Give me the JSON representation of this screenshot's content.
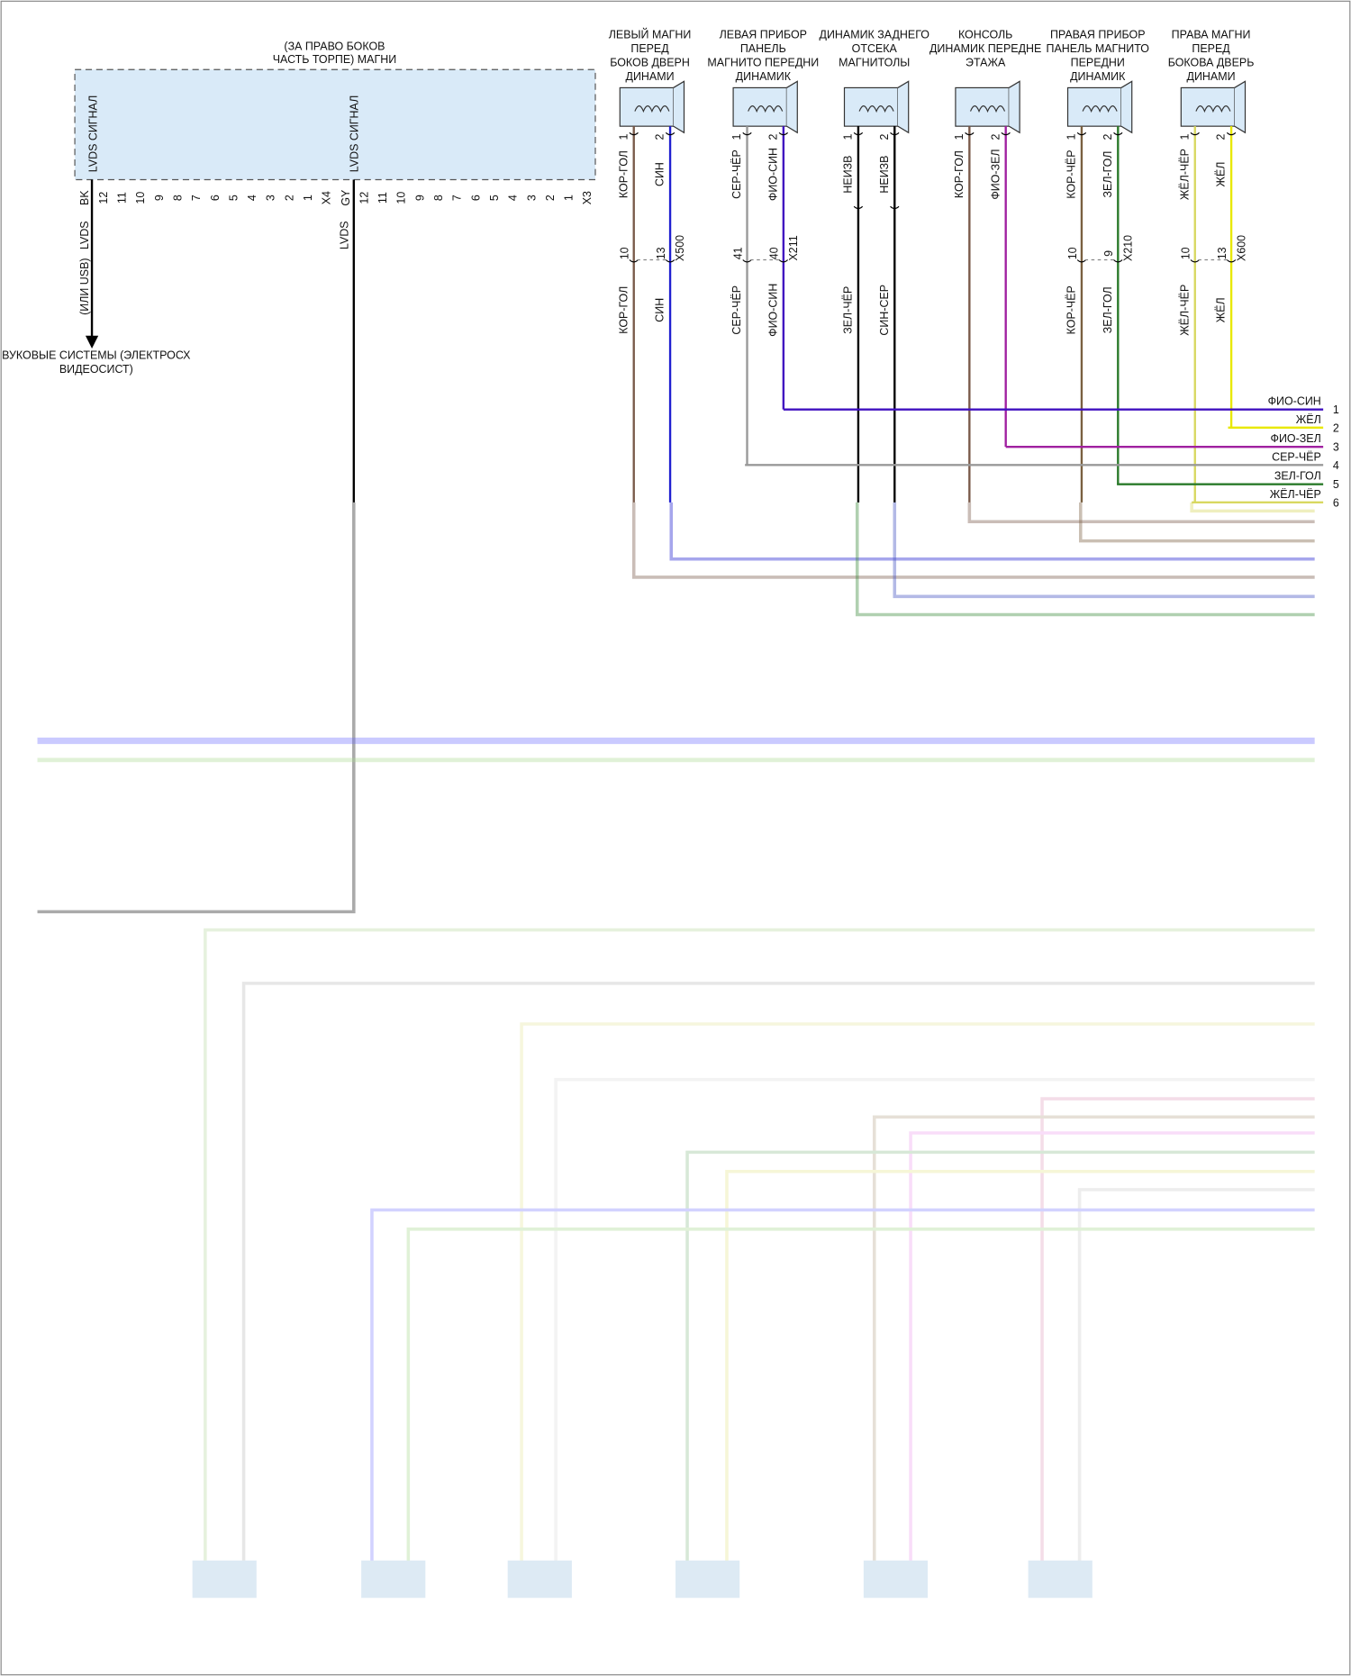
{
  "module": {
    "title": [
      "(ЗА ПРАВО БОКОВ",
      "ЧАСТЬ ТОРПЕ) МАГНИ"
    ],
    "signal_labels": [
      "LVDS СИГНАЛ",
      "LVDS СИГНАЛ"
    ],
    "connectors": [
      {
        "pins": [
          "BK",
          "12",
          "11",
          "10",
          "9",
          "8",
          "7",
          "6",
          "5",
          "4",
          "3",
          "2",
          "1",
          "X4"
        ]
      },
      {
        "pins": [
          "GY",
          "12",
          "11",
          "10",
          "9",
          "8",
          "7",
          "6",
          "5",
          "4",
          "3",
          "2",
          "1",
          "X3"
        ]
      }
    ]
  },
  "outputs": [
    {
      "wire_labels": [
        "LVDS",
        "(ИЛИ USB)"
      ],
      "destination": [
        "ВУКОВЫЕ СИСТЕМЫ (ЭЛЕКТРОСХ",
        "ВИДЕОСИСТ)"
      ]
    },
    {
      "wire_labels": [
        "LVDS"
      ]
    }
  ],
  "speakers": [
    {
      "title": [
        "ЛЕВЫЙ МАГНИ",
        "ПЕРЕД",
        "БОКОВ ДВЕРН",
        "ДИНАМИ"
      ],
      "pins": [
        "1",
        "2"
      ],
      "wires_top": [
        "КОР-ГОЛ",
        "СИН"
      ],
      "connector": {
        "pins": [
          "10",
          "13"
        ],
        "name": "X500"
      },
      "wires_bottom": [
        "КОР-ГОЛ",
        "СИН"
      ]
    },
    {
      "title": [
        "ЛЕВАЯ ПРИБОР",
        "ПАНЕЛЬ",
        "МАГНИТО ПЕРЕДНИ",
        "ДИНАМИК"
      ],
      "pins": [
        "1",
        "2"
      ],
      "wires_top": [
        "СЕР-ЧЁР",
        "ФИО-СИН"
      ],
      "connector": {
        "pins": [
          "41",
          "40"
        ],
        "name": "X211"
      },
      "wires_bottom": [
        "СЕР-ЧЁР",
        "ФИО-СИН"
      ]
    },
    {
      "title": [
        "ДИНАМИК ЗАДНЕГО",
        "ОТСЕКА",
        "МАГНИТОЛЫ"
      ],
      "pins": [
        "1",
        "2"
      ],
      "wires_top": [
        "НЕИЗВ",
        "НЕИЗВ"
      ],
      "wires_bottom": [
        "ЗЕЛ-ЧЁР",
        "СИН-СЕР"
      ]
    },
    {
      "title": [
        "КОНСОЛЬ",
        "ДИНАМИК ПЕРЕДНЕ",
        "ЭТАЖА"
      ],
      "pins": [
        "1",
        "2"
      ],
      "wires_top": [
        "КОР-ГОЛ",
        "ФИО-ЗЕЛ"
      ]
    },
    {
      "title": [
        "ПРАВАЯ ПРИБОР",
        "ПАНЕЛЬ МАГНИТО",
        "ПЕРЕДНИ",
        "ДИНАМИК"
      ],
      "pins": [
        "1",
        "2"
      ],
      "wires_top": [
        "КОР-ЧЁР",
        "ЗЕЛ-ГОЛ"
      ],
      "connector": {
        "pins": [
          "10",
          "9"
        ],
        "name": "X210"
      },
      "wires_bottom": [
        "КОР-ЧЁР",
        "ЗЕЛ-ГОЛ"
      ]
    },
    {
      "title": [
        "ПРАВА МАГНИ",
        "ПЕРЕД",
        "БОКОВА ДВЕРЬ",
        "ДИНАМИ"
      ],
      "pins": [
        "1",
        "2"
      ],
      "wires_top": [
        "ЖЁЛ-ЧЁР",
        "ЖЁЛ"
      ],
      "connector": {
        "pins": [
          "10",
          "13"
        ],
        "name": "X600"
      },
      "wires_bottom": [
        "ЖЁЛ-ЧЁР",
        "ЖЁЛ"
      ]
    }
  ],
  "outgoing": [
    {
      "label": "ФИО-СИН",
      "number": "1"
    },
    {
      "label": "ЖЁЛ",
      "number": "2"
    },
    {
      "label": "ФИО-ЗЕЛ",
      "number": "3"
    },
    {
      "label": "СЕР-ЧЁР",
      "number": "4"
    },
    {
      "label": "ЗЕЛ-ГОЛ",
      "number": "5"
    },
    {
      "label": "ЖЁЛ-ЧЁР",
      "number": "6"
    }
  ]
}
